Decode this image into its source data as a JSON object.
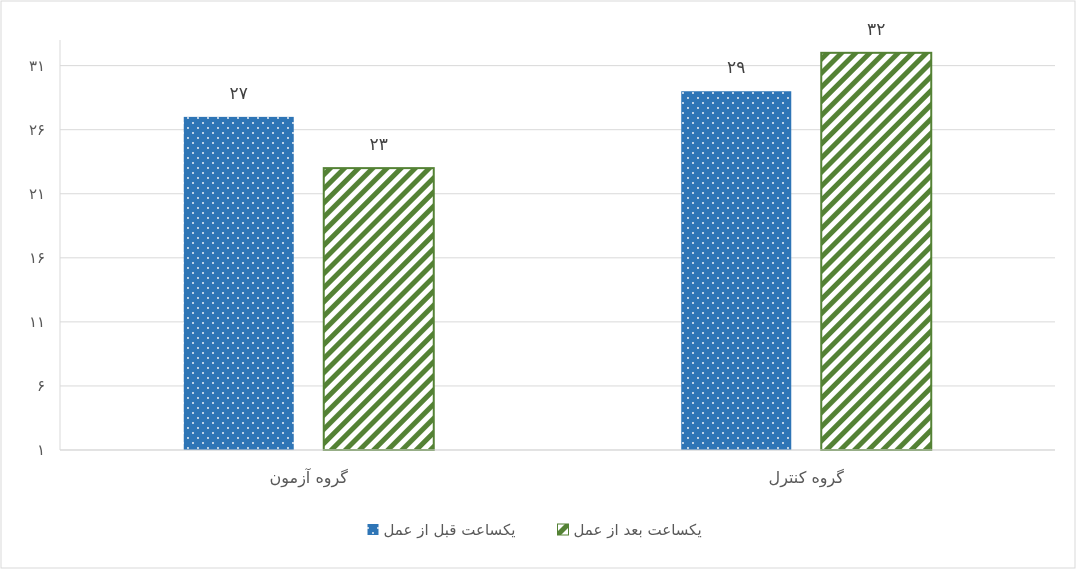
{
  "chart_data": {
    "type": "bar",
    "categories": [
      "گروه آزمون",
      "گروه کنترل"
    ],
    "series": [
      {
        "name": "یکساعت قبل از عمل",
        "color": "#2e75b6",
        "values": [
          27,
          29
        ],
        "value_labels": [
          "۲۷",
          "۲۹"
        ]
      },
      {
        "name": "یکساعت بعد از عمل",
        "color": "#548235",
        "values": [
          23,
          32
        ],
        "value_labels": [
          "۲۳",
          "۳۲"
        ]
      }
    ],
    "ylim": [
      1,
      33
    ],
    "yticks": [
      {
        "value": 1,
        "label": "۱"
      },
      {
        "value": 6,
        "label": "۶"
      },
      {
        "value": 11,
        "label": "۱۱"
      },
      {
        "value": 16,
        "label": "۱۶"
      },
      {
        "value": 21,
        "label": "۲۱"
      },
      {
        "value": 26,
        "label": "۲۶"
      },
      {
        "value": 31,
        "label": "۳۱"
      }
    ],
    "grid": "y",
    "legend": "bottom"
  }
}
